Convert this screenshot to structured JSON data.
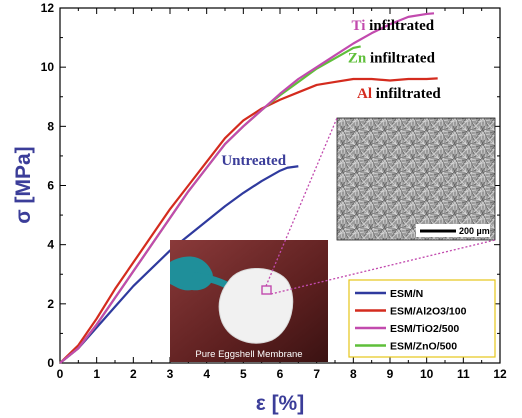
{
  "chart_data": {
    "type": "line",
    "xlabel": "ε [%]",
    "ylabel": "σ [MPa]",
    "xlim": [
      0,
      12
    ],
    "ylim": [
      0,
      12
    ],
    "x_ticks": [
      0,
      0.5,
      1,
      1.5,
      2,
      2.5,
      3,
      3.5,
      4,
      4.5,
      5,
      5.5,
      6,
      6.5,
      7,
      7.5,
      8,
      8.5,
      9,
      9.5,
      10,
      10.5,
      11,
      11.5,
      12
    ],
    "x_tick_labels": [
      "0",
      "1",
      "2",
      "3",
      "4",
      "5",
      "6",
      "7",
      "8",
      "9",
      "10",
      "11",
      "12"
    ],
    "y_tick_labels": [
      "0",
      "2",
      "4",
      "6",
      "8",
      "10",
      "12"
    ],
    "legend_position": "bottom-right",
    "series": [
      {
        "name": "ESM/N",
        "color": "#2f3a9e",
        "x": [
          0,
          0.5,
          1,
          1.5,
          2,
          2.5,
          3,
          3.5,
          4,
          4.5,
          5,
          5.5,
          6,
          6.2,
          6.5
        ],
        "y": [
          0,
          0.5,
          1.2,
          1.9,
          2.6,
          3.2,
          3.8,
          4.3,
          4.8,
          5.3,
          5.75,
          6.15,
          6.5,
          6.6,
          6.65
        ]
      },
      {
        "name": "ESM/Al2O3/100",
        "color": "#d42b1e",
        "x": [
          0,
          0.5,
          1,
          1.5,
          2,
          2.5,
          3,
          3.5,
          4,
          4.5,
          5,
          5.5,
          6,
          6.5,
          7,
          7.5,
          8,
          8.5,
          9,
          9.5,
          10,
          10.3
        ],
        "y": [
          0,
          0.6,
          1.5,
          2.5,
          3.4,
          4.3,
          5.2,
          6.0,
          6.8,
          7.6,
          8.2,
          8.6,
          8.9,
          9.15,
          9.4,
          9.5,
          9.6,
          9.6,
          9.55,
          9.6,
          9.6,
          9.62
        ]
      },
      {
        "name": "ESM/TiO2/500",
        "color": "#c24aae",
        "x": [
          0,
          0.5,
          1,
          1.5,
          2,
          2.5,
          3,
          3.5,
          4,
          4.5,
          5,
          5.5,
          6,
          6.5,
          7,
          7.5,
          8,
          8.5,
          9,
          9.5,
          10,
          10.2
        ],
        "y": [
          0,
          0.5,
          1.3,
          2.2,
          3.1,
          4.0,
          4.9,
          5.8,
          6.6,
          7.4,
          8.0,
          8.55,
          9.1,
          9.6,
          10.0,
          10.4,
          10.8,
          11.15,
          11.45,
          11.7,
          11.8,
          11.82
        ]
      },
      {
        "name": "ESM/ZnO/500",
        "color": "#5fbf3a",
        "x": [
          0,
          0.5,
          1,
          1.5,
          2,
          2.5,
          3,
          3.5,
          4,
          4.5,
          5,
          5.5,
          6,
          6.5,
          7,
          7.5,
          8,
          8.2
        ],
        "y": [
          0,
          0.5,
          1.3,
          2.2,
          3.1,
          4.0,
          4.9,
          5.8,
          6.6,
          7.4,
          8.0,
          8.55,
          9.05,
          9.5,
          9.95,
          10.3,
          10.65,
          10.7
        ]
      }
    ],
    "annotations": [
      {
        "element": "Ti",
        "text": " infiltrated",
        "color": "#c24aae",
        "x": 7.95,
        "y": 11.25
      },
      {
        "element": "Zn",
        "text": " infiltrated",
        "color": "#5fbf3a",
        "x": 7.85,
        "y": 10.15
      },
      {
        "element": "Al",
        "text": " infiltrated",
        "color": "#d42b1e",
        "x": 8.1,
        "y": 8.95
      },
      {
        "element": "",
        "text": "Untreated",
        "color": "#3b3d99",
        "x": 4.4,
        "y": 6.7
      }
    ]
  },
  "insets": {
    "photo_caption": "Pure Eggshell Membrane",
    "sem_scale_label": "200 µm"
  }
}
